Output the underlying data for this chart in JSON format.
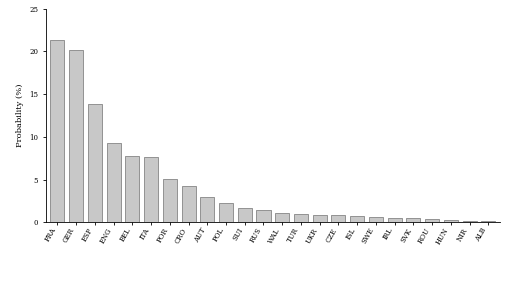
{
  "categories": [
    "FRA",
    "GER",
    "ESP",
    "ENG",
    "BEL",
    "ITA",
    "POR",
    "CRO",
    "AUT",
    "POL",
    "SUI",
    "RUS",
    "WAL",
    "TUR",
    "UKR",
    "CZE",
    "ISL",
    "SWE",
    "IRL",
    "SVK",
    "ROU",
    "HUN",
    "NIR",
    "ALB"
  ],
  "values": [
    21.3,
    20.2,
    13.8,
    9.3,
    7.7,
    7.6,
    5.1,
    4.3,
    3.0,
    2.3,
    1.7,
    1.4,
    1.1,
    1.0,
    0.9,
    0.8,
    0.75,
    0.65,
    0.5,
    0.45,
    0.4,
    0.25,
    0.2,
    0.15
  ],
  "bar_color": "#c8c8c8",
  "bar_edge_color": "#555555",
  "ylabel": "Probability (%)",
  "ylim": [
    0,
    25
  ],
  "yticks": [
    0,
    5,
    10,
    15,
    20,
    25
  ],
  "background_color": "#ffffff",
  "tick_labelsize": 5,
  "ylabel_fontsize": 6,
  "xlabel_rotation": 60,
  "bar_width": 0.75
}
